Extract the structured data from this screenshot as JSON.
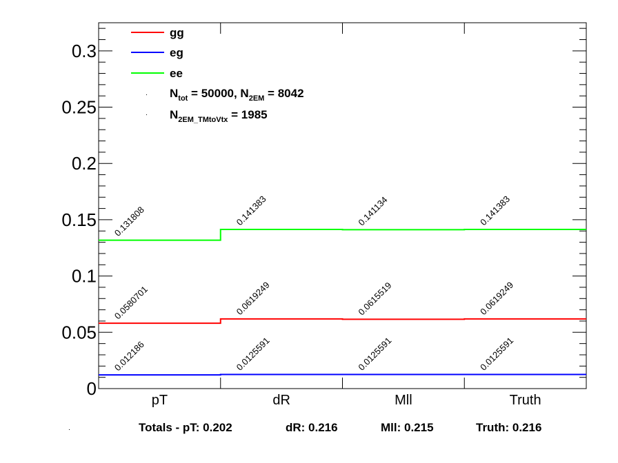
{
  "chart_data": {
    "type": "line",
    "categories": [
      "pT",
      "dR",
      "Mll",
      "Truth"
    ],
    "ylim": [
      0,
      0.325
    ],
    "yticks": [
      "0",
      "0.05",
      "0.1",
      "0.15",
      "0.2",
      "0.25",
      "0.3"
    ],
    "ytick_values": [
      0,
      0.05,
      0.1,
      0.15,
      0.2,
      0.25,
      0.3
    ],
    "series": [
      {
        "name": "gg",
        "color": "#ff0000",
        "values": [
          0.0580701,
          0.0619249,
          0.0615519,
          0.0619249
        ],
        "labels": [
          "0.0580701",
          "0.0619249",
          "0.0615519",
          "0.0619249"
        ]
      },
      {
        "name": "eg",
        "color": "#0000ff",
        "values": [
          0.012186,
          0.0125591,
          0.0125591,
          0.0125591
        ],
        "labels": [
          "0.012186",
          "0.0125591",
          "0.0125591",
          "0.0125591"
        ]
      },
      {
        "name": "ee",
        "color": "#00ff00",
        "values": [
          0.131808,
          0.141383,
          0.141134,
          0.141383
        ],
        "labels": [
          "0.131808",
          "0.141383",
          "0.141134",
          "0.141383"
        ]
      }
    ],
    "legend": {
      "placement": "top-left",
      "entries": [
        "gg",
        "eg",
        "ee"
      ],
      "info1": {
        "a": "N",
        "a_sub": "tot",
        "b": " = 50000, N",
        "b_sub": "2EM",
        "c": " = 8042"
      },
      "info2": {
        "a": "N",
        "a_sub": "2EM_TMtoVtx",
        "b": "  = 1985"
      }
    }
  },
  "totals": {
    "prefix": "Totals -  pT: 0.202",
    "dr": "dR: 0.216",
    "mll": "Mll: 0.215",
    "truth": "Truth: 0.216"
  }
}
